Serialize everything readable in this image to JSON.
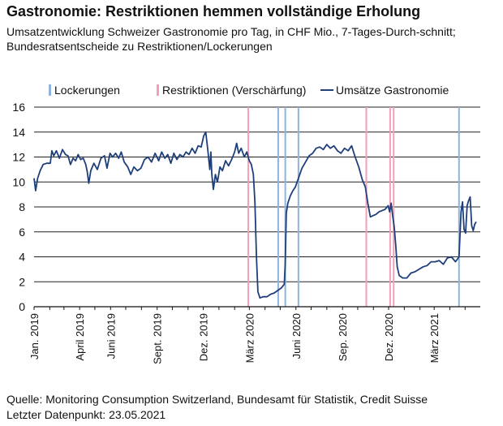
{
  "title": "Gastronomie: Restriktionen hemmen vollständige Erholung",
  "subtitle": "Umsatzentwicklung Schweizer Gastronomie pro Tag, in CHF Mio., 7-Tages-Durch-schnitt; Bundesratsentscheide zu Restriktionen/Lockerungen",
  "source": "Quelle: Monitoring Consumption Switzerland, Bundesamt für Statistik, Credit Suisse",
  "last_point": "Letzter Datenpunkt: 23.05.2021",
  "chart_data": {
    "type": "line",
    "ylim": [
      0,
      16
    ],
    "yticks": [
      0,
      2,
      4,
      6,
      8,
      10,
      12,
      14,
      16
    ],
    "xlim": [
      "2019-01-01",
      "2021-05-31"
    ],
    "xticks": [
      {
        "date": "2019-01-01",
        "label": "Jan. 2019"
      },
      {
        "date": "2019-04-01",
        "label": "April 2019"
      },
      {
        "date": "2019-06-01",
        "label": "Juni 2019"
      },
      {
        "date": "2019-09-01",
        "label": "Sept. 2019"
      },
      {
        "date": "2019-12-01",
        "label": "Dez. 2019"
      },
      {
        "date": "2020-03-01",
        "label": "März 2020"
      },
      {
        "date": "2020-06-01",
        "label": "Juni 2020"
      },
      {
        "date": "2020-09-01",
        "label": "Sep. 2020"
      },
      {
        "date": "2020-12-01",
        "label": "Dez. 2020"
      },
      {
        "date": "2021-03-01",
        "label": "März 2021"
      }
    ],
    "grid": true,
    "legend": [
      {
        "name": "Lockerungen",
        "color": "#8fb3e0",
        "kind": "bar"
      },
      {
        "name": "Restriktionen (Verschärfung)",
        "color": "#f2a0b8",
        "kind": "bar"
      },
      {
        "name": "Umsätze Gastronomie",
        "color": "#1f3f7a",
        "kind": "line"
      }
    ],
    "restriktionen_dates": [
      "2020-02-28",
      "2020-10-18",
      "2020-12-04",
      "2020-12-11"
    ],
    "lockerungen_dates": [
      "2020-04-27",
      "2020-05-11",
      "2020-06-06",
      "2021-04-19"
    ],
    "series": [
      {
        "name": "Umsätze Gastronomie",
        "color": "#1f3f7a",
        "points": [
          [
            "2019-01-01",
            10.3
          ],
          [
            "2019-01-04",
            9.3
          ],
          [
            "2019-01-08",
            10.3
          ],
          [
            "2019-01-13",
            10.9
          ],
          [
            "2019-01-19",
            11.4
          ],
          [
            "2019-01-26",
            11.5
          ],
          [
            "2019-02-02",
            11.5
          ],
          [
            "2019-02-05",
            12.5
          ],
          [
            "2019-02-09",
            12.1
          ],
          [
            "2019-02-14",
            12.5
          ],
          [
            "2019-02-20",
            11.9
          ],
          [
            "2019-02-26",
            12.6
          ],
          [
            "2019-03-04",
            12.2
          ],
          [
            "2019-03-09",
            12.1
          ],
          [
            "2019-03-14",
            11.4
          ],
          [
            "2019-03-19",
            11.9
          ],
          [
            "2019-03-24",
            11.7
          ],
          [
            "2019-03-29",
            12.2
          ],
          [
            "2019-04-03",
            11.8
          ],
          [
            "2019-04-08",
            11.9
          ],
          [
            "2019-04-13",
            11.4
          ],
          [
            "2019-04-16",
            10.8
          ],
          [
            "2019-04-19",
            9.9
          ],
          [
            "2019-04-23",
            10.9
          ],
          [
            "2019-04-29",
            11.5
          ],
          [
            "2019-05-06",
            11.0
          ],
          [
            "2019-05-13",
            11.9
          ],
          [
            "2019-05-20",
            12.1
          ],
          [
            "2019-05-25",
            11.1
          ],
          [
            "2019-05-31",
            12.3
          ],
          [
            "2019-06-05",
            12.0
          ],
          [
            "2019-06-11",
            12.3
          ],
          [
            "2019-06-17",
            11.9
          ],
          [
            "2019-06-22",
            12.4
          ],
          [
            "2019-06-28",
            11.6
          ],
          [
            "2019-07-05",
            11.2
          ],
          [
            "2019-07-11",
            10.6
          ],
          [
            "2019-07-17",
            11.2
          ],
          [
            "2019-07-24",
            10.9
          ],
          [
            "2019-07-31",
            11.1
          ],
          [
            "2019-08-07",
            11.8
          ],
          [
            "2019-08-14",
            12.0
          ],
          [
            "2019-08-21",
            11.6
          ],
          [
            "2019-08-28",
            12.3
          ],
          [
            "2019-09-04",
            11.7
          ],
          [
            "2019-09-10",
            12.4
          ],
          [
            "2019-09-16",
            11.9
          ],
          [
            "2019-09-22",
            12.2
          ],
          [
            "2019-09-28",
            11.5
          ],
          [
            "2019-10-04",
            12.3
          ],
          [
            "2019-10-10",
            11.8
          ],
          [
            "2019-10-16",
            12.2
          ],
          [
            "2019-10-22",
            12.0
          ],
          [
            "2019-10-28",
            12.4
          ],
          [
            "2019-11-03",
            12.2
          ],
          [
            "2019-11-09",
            12.7
          ],
          [
            "2019-11-15",
            12.3
          ],
          [
            "2019-11-21",
            12.9
          ],
          [
            "2019-11-27",
            12.8
          ],
          [
            "2019-12-02",
            13.7
          ],
          [
            "2019-12-06",
            14.0
          ],
          [
            "2019-12-10",
            12.6
          ],
          [
            "2019-12-14",
            11.0
          ],
          [
            "2019-12-16",
            12.4
          ],
          [
            "2019-12-18",
            10.6
          ],
          [
            "2019-12-21",
            9.4
          ],
          [
            "2019-12-25",
            10.6
          ],
          [
            "2019-12-29",
            10.0
          ],
          [
            "2020-01-03",
            11.2
          ],
          [
            "2020-01-08",
            10.9
          ],
          [
            "2020-01-14",
            11.7
          ],
          [
            "2020-01-20",
            11.3
          ],
          [
            "2020-01-26",
            11.8
          ],
          [
            "2020-02-01",
            12.4
          ],
          [
            "2020-02-05",
            13.1
          ],
          [
            "2020-02-09",
            12.3
          ],
          [
            "2020-02-14",
            12.7
          ],
          [
            "2020-02-20",
            12.0
          ],
          [
            "2020-02-25",
            12.4
          ],
          [
            "2020-03-01",
            11.7
          ],
          [
            "2020-03-05",
            11.4
          ],
          [
            "2020-03-09",
            10.6
          ],
          [
            "2020-03-12",
            8.4
          ],
          [
            "2020-03-15",
            4.0
          ],
          [
            "2020-03-18",
            1.2
          ],
          [
            "2020-03-22",
            0.7
          ],
          [
            "2020-03-28",
            0.8
          ],
          [
            "2020-04-05",
            0.8
          ],
          [
            "2020-04-12",
            1.0
          ],
          [
            "2020-04-19",
            1.1
          ],
          [
            "2020-04-26",
            1.3
          ],
          [
            "2020-05-03",
            1.5
          ],
          [
            "2020-05-09",
            1.8
          ],
          [
            "2020-05-11",
            3.5
          ],
          [
            "2020-05-13",
            7.5
          ],
          [
            "2020-05-16",
            8.3
          ],
          [
            "2020-05-21",
            8.9
          ],
          [
            "2020-05-26",
            9.3
          ],
          [
            "2020-05-31",
            9.6
          ],
          [
            "2020-06-06",
            10.3
          ],
          [
            "2020-06-13",
            11.1
          ],
          [
            "2020-06-20",
            11.6
          ],
          [
            "2020-06-27",
            12.1
          ],
          [
            "2020-07-04",
            12.3
          ],
          [
            "2020-07-11",
            12.7
          ],
          [
            "2020-07-18",
            12.8
          ],
          [
            "2020-07-25",
            12.6
          ],
          [
            "2020-08-01",
            13.0
          ],
          [
            "2020-08-08",
            12.7
          ],
          [
            "2020-08-15",
            12.9
          ],
          [
            "2020-08-22",
            12.5
          ],
          [
            "2020-08-29",
            12.3
          ],
          [
            "2020-09-05",
            12.7
          ],
          [
            "2020-09-12",
            12.5
          ],
          [
            "2020-09-19",
            12.9
          ],
          [
            "2020-09-26",
            12.0
          ],
          [
            "2020-10-03",
            11.2
          ],
          [
            "2020-10-10",
            10.2
          ],
          [
            "2020-10-16",
            9.6
          ],
          [
            "2020-10-21",
            8.3
          ],
          [
            "2020-10-26",
            7.2
          ],
          [
            "2020-10-31",
            7.3
          ],
          [
            "2020-11-06",
            7.4
          ],
          [
            "2020-11-12",
            7.6
          ],
          [
            "2020-11-18",
            7.7
          ],
          [
            "2020-11-24",
            7.8
          ],
          [
            "2020-11-30",
            8.1
          ],
          [
            "2020-12-03",
            7.6
          ],
          [
            "2020-12-06",
            8.3
          ],
          [
            "2020-12-09",
            7.3
          ],
          [
            "2020-12-12",
            6.4
          ],
          [
            "2020-12-15",
            5.0
          ],
          [
            "2020-12-18",
            3.2
          ],
          [
            "2020-12-22",
            2.5
          ],
          [
            "2020-12-29",
            2.3
          ],
          [
            "2021-01-06",
            2.3
          ],
          [
            "2021-01-14",
            2.7
          ],
          [
            "2021-01-22",
            2.8
          ],
          [
            "2021-01-30",
            3.0
          ],
          [
            "2021-02-07",
            3.2
          ],
          [
            "2021-02-15",
            3.3
          ],
          [
            "2021-02-23",
            3.6
          ],
          [
            "2021-03-03",
            3.6
          ],
          [
            "2021-03-11",
            3.7
          ],
          [
            "2021-03-19",
            3.4
          ],
          [
            "2021-03-27",
            3.9
          ],
          [
            "2021-04-04",
            4.0
          ],
          [
            "2021-04-12",
            3.6
          ],
          [
            "2021-04-19",
            4.0
          ],
          [
            "2021-04-23",
            7.6
          ],
          [
            "2021-04-26",
            8.4
          ],
          [
            "2021-04-29",
            6.2
          ],
          [
            "2021-05-02",
            5.9
          ],
          [
            "2021-05-05",
            8.1
          ],
          [
            "2021-05-08",
            8.5
          ],
          [
            "2021-05-11",
            8.8
          ],
          [
            "2021-05-14",
            6.5
          ],
          [
            "2021-05-17",
            6.1
          ],
          [
            "2021-05-20",
            6.6
          ],
          [
            "2021-05-23",
            6.8
          ]
        ]
      }
    ]
  }
}
